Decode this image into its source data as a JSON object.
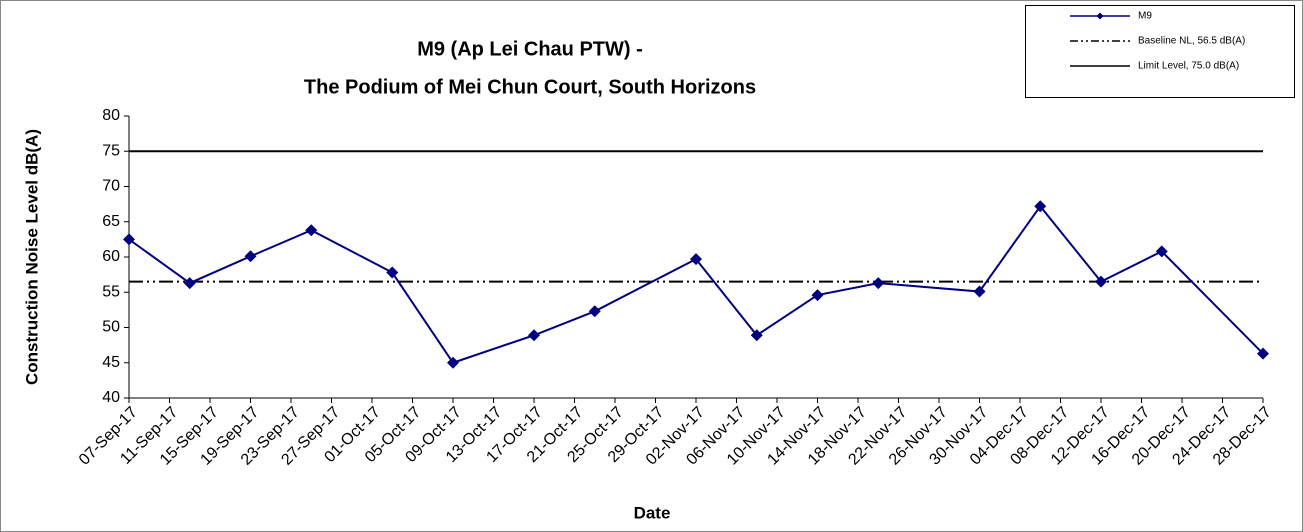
{
  "chart_data": {
    "type": "line",
    "title": "M9 (Ap Lei Chau PTW) -",
    "subtitle": "The Podium of Mei Chun Court, South Horizons",
    "x_label": "Date",
    "y_label": "Construction Noise Level dB(A)",
    "x": [
      "2017-09-07",
      "2017-09-13",
      "2017-09-19",
      "2017-09-25",
      "2017-10-03",
      "2017-10-09",
      "2017-10-17",
      "2017-10-23",
      "2017-11-02",
      "2017-11-08",
      "2017-11-14",
      "2017-11-20",
      "2017-11-30",
      "2017-12-06",
      "2017-12-12",
      "2017-12-18",
      "2017-12-28"
    ],
    "series": [
      {
        "name": "M9",
        "color": "#000080",
        "marker": "diamond",
        "values": [
          62.5,
          56.3,
          60.1,
          63.8,
          57.8,
          45.0,
          48.9,
          52.3,
          59.7,
          48.9,
          54.6,
          56.3,
          55.1,
          67.2,
          56.5,
          60.8,
          46.3
        ]
      }
    ],
    "reference_lines": [
      {
        "name": "Baseline NL, 56.5 dB(A)",
        "value": 56.5,
        "color": "#000000",
        "style": "dash-dot-dot"
      },
      {
        "name": "Limit Level, 75.0 dB(A)",
        "value": 75.0,
        "color": "#000000",
        "style": "solid"
      }
    ],
    "xlim": [
      "2017-09-07",
      "2017-12-28"
    ],
    "xticks": [
      {
        "value": "2017-09-07",
        "label": "07-Sep-17"
      },
      {
        "value": "2017-09-11",
        "label": "11-Sep-17"
      },
      {
        "value": "2017-09-15",
        "label": "15-Sep-17"
      },
      {
        "value": "2017-09-19",
        "label": "19-Sep-17"
      },
      {
        "value": "2017-09-23",
        "label": "23-Sep-17"
      },
      {
        "value": "2017-09-27",
        "label": "27-Sep-17"
      },
      {
        "value": "2017-10-01",
        "label": "01-Oct-17"
      },
      {
        "value": "2017-10-05",
        "label": "05-Oct-17"
      },
      {
        "value": "2017-10-09",
        "label": "09-Oct-17"
      },
      {
        "value": "2017-10-13",
        "label": "13-Oct-17"
      },
      {
        "value": "2017-10-17",
        "label": "17-Oct-17"
      },
      {
        "value": "2017-10-21",
        "label": "21-Oct-17"
      },
      {
        "value": "2017-10-25",
        "label": "25-Oct-17"
      },
      {
        "value": "2017-10-29",
        "label": "29-Oct-17"
      },
      {
        "value": "2017-11-02",
        "label": "02-Nov-17"
      },
      {
        "value": "2017-11-06",
        "label": "06-Nov-17"
      },
      {
        "value": "2017-11-10",
        "label": "10-Nov-17"
      },
      {
        "value": "2017-11-14",
        "label": "14-Nov-17"
      },
      {
        "value": "2017-11-18",
        "label": "18-Nov-17"
      },
      {
        "value": "2017-11-22",
        "label": "22-Nov-17"
      },
      {
        "value": "2017-11-26",
        "label": "26-Nov-17"
      },
      {
        "value": "2017-11-30",
        "label": "30-Nov-17"
      },
      {
        "value": "2017-12-04",
        "label": "04-Dec-17"
      },
      {
        "value": "2017-12-08",
        "label": "08-Dec-17"
      },
      {
        "value": "2017-12-12",
        "label": "12-Dec-17"
      },
      {
        "value": "2017-12-16",
        "label": "16-Dec-17"
      },
      {
        "value": "2017-12-20",
        "label": "20-Dec-17"
      },
      {
        "value": "2017-12-24",
        "label": "24-Dec-17"
      },
      {
        "value": "2017-12-28",
        "label": "28-Dec-17"
      }
    ],
    "ylim": [
      40,
      80
    ],
    "yticks": [
      40,
      45,
      50,
      55,
      60,
      65,
      70,
      75,
      80
    ],
    "grid": false,
    "legend": "upper right"
  }
}
